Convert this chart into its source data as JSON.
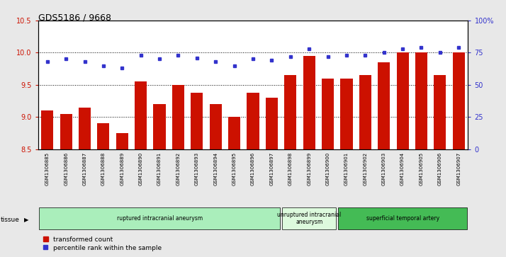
{
  "title": "GDS5186 / 9668",
  "samples": [
    "GSM1306885",
    "GSM1306886",
    "GSM1306887",
    "GSM1306888",
    "GSM1306889",
    "GSM1306890",
    "GSM1306891",
    "GSM1306892",
    "GSM1306893",
    "GSM1306894",
    "GSM1306895",
    "GSM1306896",
    "GSM1306897",
    "GSM1306898",
    "GSM1306899",
    "GSM1306900",
    "GSM1306901",
    "GSM1306902",
    "GSM1306903",
    "GSM1306904",
    "GSM1306905",
    "GSM1306906",
    "GSM1306907"
  ],
  "transformed_count": [
    9.1,
    9.05,
    9.15,
    8.9,
    8.75,
    9.55,
    9.2,
    9.5,
    9.38,
    9.2,
    9.0,
    9.38,
    9.3,
    9.65,
    9.95,
    9.6,
    9.6,
    9.65,
    9.85,
    10.0,
    10.0,
    9.65,
    10.0
  ],
  "percentile_rank": [
    68,
    70,
    68,
    65,
    63,
    73,
    70,
    73,
    71,
    68,
    65,
    70,
    69,
    72,
    78,
    72,
    73,
    73,
    75,
    78,
    79,
    75,
    79
  ],
  "groups": [
    {
      "label": "ruptured intracranial aneurysm",
      "start": 0,
      "end": 13,
      "color": "#aaeebb"
    },
    {
      "label": "unruptured intracranial\naneurysm",
      "start": 13,
      "end": 16,
      "color": "#ddfadd"
    },
    {
      "label": "superficial temporal artery",
      "start": 16,
      "end": 23,
      "color": "#44bb55"
    }
  ],
  "ylim_left": [
    8.5,
    10.5
  ],
  "ylim_right": [
    0,
    100
  ],
  "bar_color": "#cc1100",
  "dot_color": "#3333cc",
  "background_color": "#e8e8e8",
  "plot_bg_color": "#ffffff",
  "xtick_bg_color": "#cccccc",
  "title_color": "#000000",
  "left_axis_color": "#cc1100",
  "right_axis_color": "#3333cc",
  "yticks_left": [
    8.5,
    9.0,
    9.5,
    10.0,
    10.5
  ],
  "yticks_right": [
    0,
    25,
    50,
    75,
    100
  ],
  "ytick_labels_right": [
    "0",
    "25",
    "50",
    "75",
    "100%"
  ]
}
